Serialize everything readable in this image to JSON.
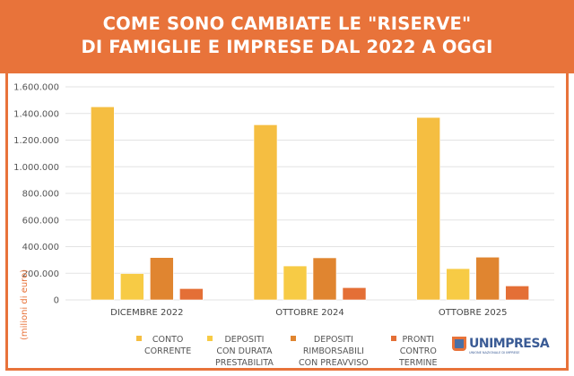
{
  "title_lines": [
    "COME SONO CAMBIATE LE \"RISERVE\"",
    "DI FAMIGLIE E IMPRESE DAL 2022 A OGGI"
  ],
  "logo": {
    "name": "UNIMPRESA",
    "tagline": "UNIONE NAZIONALE DI IMPRESE"
  },
  "chart_data": {
    "type": "bar",
    "title": "COME SONO CAMBIATE LE \"RISERVE\" DI FAMIGLIE E IMPRESE DAL 2022 A OGGI",
    "ylabel": "(milioni di euro)",
    "xlabel": "",
    "ylim": [
      0,
      1600000
    ],
    "yticks": [
      "0",
      "200.000",
      "400.000",
      "600.000",
      "800.000",
      "1.000.000",
      "1.200.000",
      "1.400.000",
      "1.600.000"
    ],
    "grid": true,
    "legend_placement": "bottom",
    "categories": [
      "DICEMBRE 2022",
      "OTTOBRE 2024",
      "OTTOBRE 2025"
    ],
    "series": [
      {
        "name": "CONTO\nCORRENTE",
        "color": "#F5BE41",
        "values": [
          1450000,
          1315000,
          1370000
        ]
      },
      {
        "name": "DEPOSITI\nCON DURATA\nPRESTABILITA",
        "color": "#F7CB45",
        "values": [
          198000,
          255000,
          235000
        ]
      },
      {
        "name": "DEPOSITI\nRIMBORSABILI\nCON PREAVVISO",
        "color": "#E08530",
        "values": [
          318000,
          316000,
          321000
        ]
      },
      {
        "name": "PRONTI\nCONTRO\nTERMINE",
        "color": "#E46F36",
        "values": [
          85000,
          92000,
          105000
        ]
      }
    ]
  }
}
